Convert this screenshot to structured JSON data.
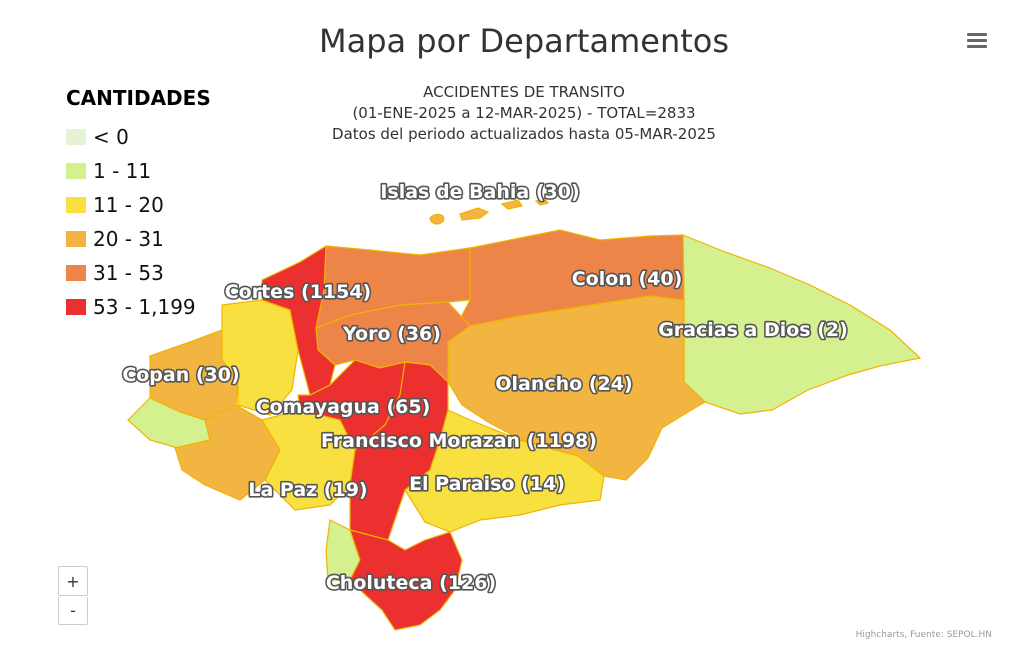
{
  "title": "Mapa por Departamentos",
  "subtitle": {
    "line1": "ACCIDENTES DE TRANSITO",
    "line2": "(01-ENE-2025 a 12-MAR-2025) - TOTAL=2833",
    "line3": "Datos del periodo actualizados hasta 05-MAR-2025"
  },
  "legend": {
    "title": "CANTIDADES",
    "items": [
      {
        "label": "< 0",
        "color": "#e5f2d3"
      },
      {
        "label": "1 - 11",
        "color": "#d4f08f"
      },
      {
        "label": "11 - 20",
        "color": "#f8e040"
      },
      {
        "label": "20 - 31",
        "color": "#f2b542"
      },
      {
        "label": "31 - 53",
        "color": "#ee8548"
      },
      {
        "label": "53 - 1,199",
        "color": "#ec2f2f"
      }
    ]
  },
  "map_data": {
    "departments": [
      {
        "name": "Islas de Bahia",
        "value": 30,
        "label": "Islas de Bahia (30)"
      },
      {
        "name": "Cortes",
        "value": 1154,
        "label": "Cortes (1154)"
      },
      {
        "name": "Colon",
        "value": 40,
        "label": "Colon (40)"
      },
      {
        "name": "Yoro",
        "value": 36,
        "label": "Yoro (36)"
      },
      {
        "name": "Gracias a Dios",
        "value": 2,
        "label": "Gracias a Dios (2)"
      },
      {
        "name": "Copan",
        "value": 30,
        "label": "Copan (30)"
      },
      {
        "name": "Olancho",
        "value": 24,
        "label": "Olancho (24)"
      },
      {
        "name": "Comayagua",
        "value": 65,
        "label": "Comayagua (65)"
      },
      {
        "name": "Francisco Morazan",
        "value": 1198,
        "label": "Francisco Morazan (1198)"
      },
      {
        "name": "La Paz",
        "value": 19,
        "label": "La Paz (19)"
      },
      {
        "name": "El Paraiso",
        "value": 14,
        "label": "El Paraiso (14)"
      },
      {
        "name": "Choluteca",
        "value": 126,
        "label": "Choluteca (126)"
      }
    ]
  },
  "zoom": {
    "in": "+",
    "out": "-"
  },
  "credits": "Highcharts, Fuente: SEPOL.HN"
}
